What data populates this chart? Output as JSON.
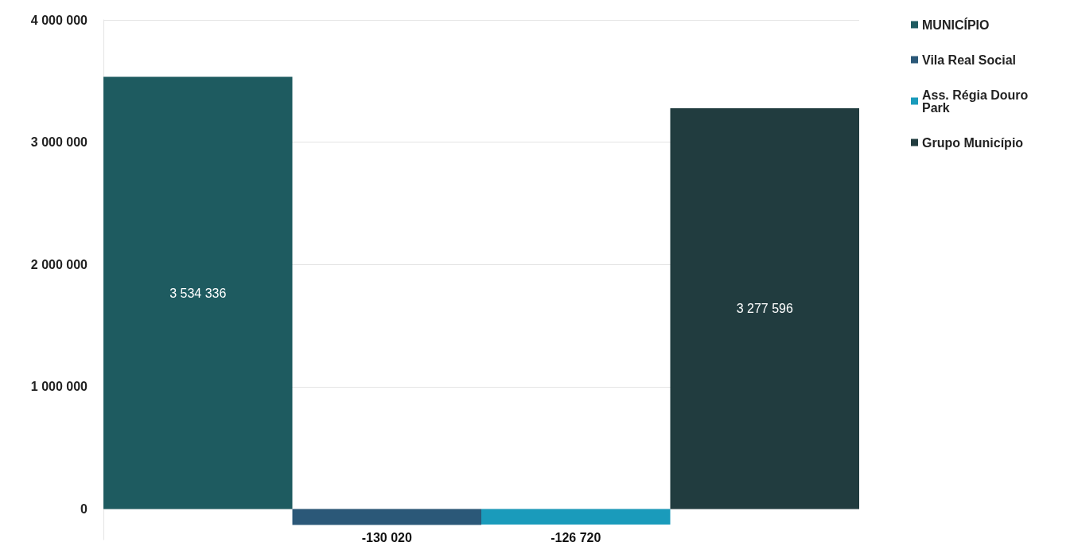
{
  "chart_data": {
    "type": "bar",
    "categories": [
      null,
      null,
      null,
      null
    ],
    "stacked": true,
    "data_labels": true,
    "grid": "y",
    "legend": "top right",
    "ylim": [
      -250000,
      4000000
    ],
    "yticks": [
      {
        "value": 0,
        "label": "0"
      },
      {
        "value": 1000000,
        "label": "1 000 000"
      },
      {
        "value": 2000000,
        "label": "2 000 000"
      },
      {
        "value": 3000000,
        "label": "3 000 000"
      },
      {
        "value": 4000000,
        "label": "4 000 000"
      }
    ],
    "series": [
      {
        "name": "MUNICÍPIO",
        "color": "#1e5b60",
        "values": [
          3534336,
          null,
          null,
          null
        ]
      },
      {
        "name": "Vila Real Social",
        "color": "#2b5878",
        "values": [
          null,
          -130020,
          null,
          null
        ]
      },
      {
        "name": "Ass. Régia Douro Park",
        "color": "#1a9bbb",
        "values": [
          null,
          null,
          -126720,
          null
        ]
      },
      {
        "name": "Grupo Município",
        "color": "#213c3f",
        "values": [
          null,
          null,
          null,
          3277596
        ]
      }
    ]
  }
}
